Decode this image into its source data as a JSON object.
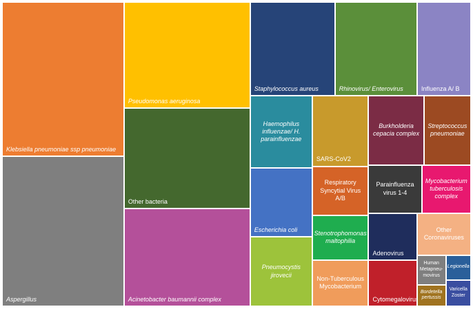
{
  "chart_data": {
    "type": "treemap",
    "categories": [
      "Klebsiella pneumoniae ssp pneumoniae",
      "Aspergillus",
      "Pseudomonas aeruginosa",
      "Other bacteria",
      "Acinetobacter baumannii complex",
      "Staphylococcus aureus",
      "Rhinovirus/ Enterovirus",
      "Influenza A/ B",
      "Haemophilus influenzae/ H. parainfluenzae",
      "Escherichia coli",
      "Pneumocystis jirovecii",
      "SARS-CoV2",
      "Respiratory Syncytial Virus A/B",
      "Stenotrophomonas maltophilia",
      "Non-Tuberculous Mycobacterium",
      "Burkholderia cepacia complex",
      "Streptococcus pneumoniae",
      "Parainfluenza virus 1-4",
      "Mycobacterium tuberculosis complex",
      "Adenovirus",
      "Other Coronaviruses",
      "Cytomegalovirus",
      "Human Metapneu-movirus",
      "Bordetella pertussis",
      "Legionella",
      "Varicella Zoster"
    ],
    "values": [
      396,
      386,
      282,
      267,
      260,
      167,
      162,
      106,
      95,
      90,
      91,
      84,
      58,
      53,
      55,
      81,
      69,
      54,
      50,
      48,
      48,
      47,
      18,
      13,
      13,
      14
    ],
    "colors": [
      "#ed7d31",
      "#7f7f7f",
      "#ffc000",
      "#44682e",
      "#b4509a",
      "#264478",
      "#5b8f3a",
      "#8b84c4",
      "#2a8c9e",
      "#4472c4",
      "#9dc33b",
      "#c89a2c",
      "#d56327",
      "#1fad4f",
      "#f09c5b",
      "#7b2c45",
      "#9c4a22",
      "#3a3a3a",
      "#e8186f",
      "#1f2d5c",
      "#f4b183",
      "#c0202a",
      "#7f7f7f",
      "#a07320",
      "#2a5f9a",
      "#3a4ea0"
    ],
    "italic": [
      true,
      true,
      true,
      false,
      true,
      true,
      true,
      false,
      true,
      true,
      true,
      false,
      false,
      true,
      false,
      true,
      true,
      false,
      true,
      false,
      false,
      false,
      false,
      true,
      true,
      false
    ]
  }
}
